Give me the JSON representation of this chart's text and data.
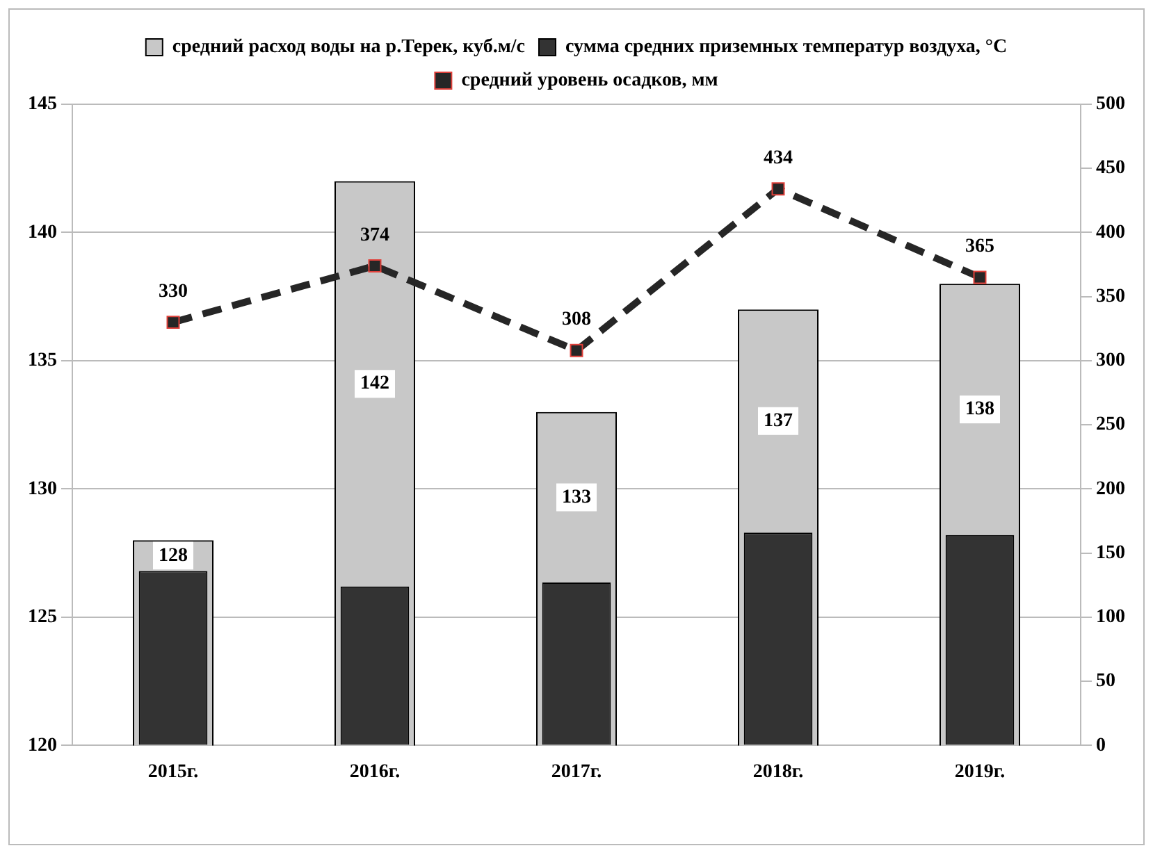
{
  "chart_data": {
    "type": "bar",
    "categories": [
      "2015г.",
      "2016г.",
      "2017г.",
      "2018г.",
      "2019г."
    ],
    "series": [
      {
        "name": "средний расход воды на р.Терек, куб.м/с",
        "color": "#c8c8c8",
        "values": [
          128,
          142,
          133,
          137,
          138
        ],
        "value_labels": [
          "128",
          "142",
          "133",
          "137",
          "138"
        ]
      },
      {
        "name": "сумма средних приземных температур воздуха, °С",
        "axis": "y2",
        "color": "#333333",
        "values": [
          136,
          124,
          127,
          166,
          164
        ]
      },
      {
        "name": "средний уровень осадков, мм",
        "type": "line",
        "axis": "y2",
        "color": "#262626",
        "line_style": "dashed",
        "marker": "square",
        "values": [
          330,
          374,
          308,
          434,
          365
        ],
        "value_labels": [
          "330",
          "374",
          "308",
          "434",
          "365"
        ]
      }
    ],
    "ylim": [
      120,
      145
    ],
    "yticks": [
      120,
      125,
      130,
      135,
      140,
      145
    ],
    "y2lim": [
      0,
      500
    ],
    "y2ticks": [
      0,
      50,
      100,
      150,
      200,
      250,
      300,
      350,
      400,
      450,
      500
    ],
    "grid": "y",
    "legend": "top"
  }
}
